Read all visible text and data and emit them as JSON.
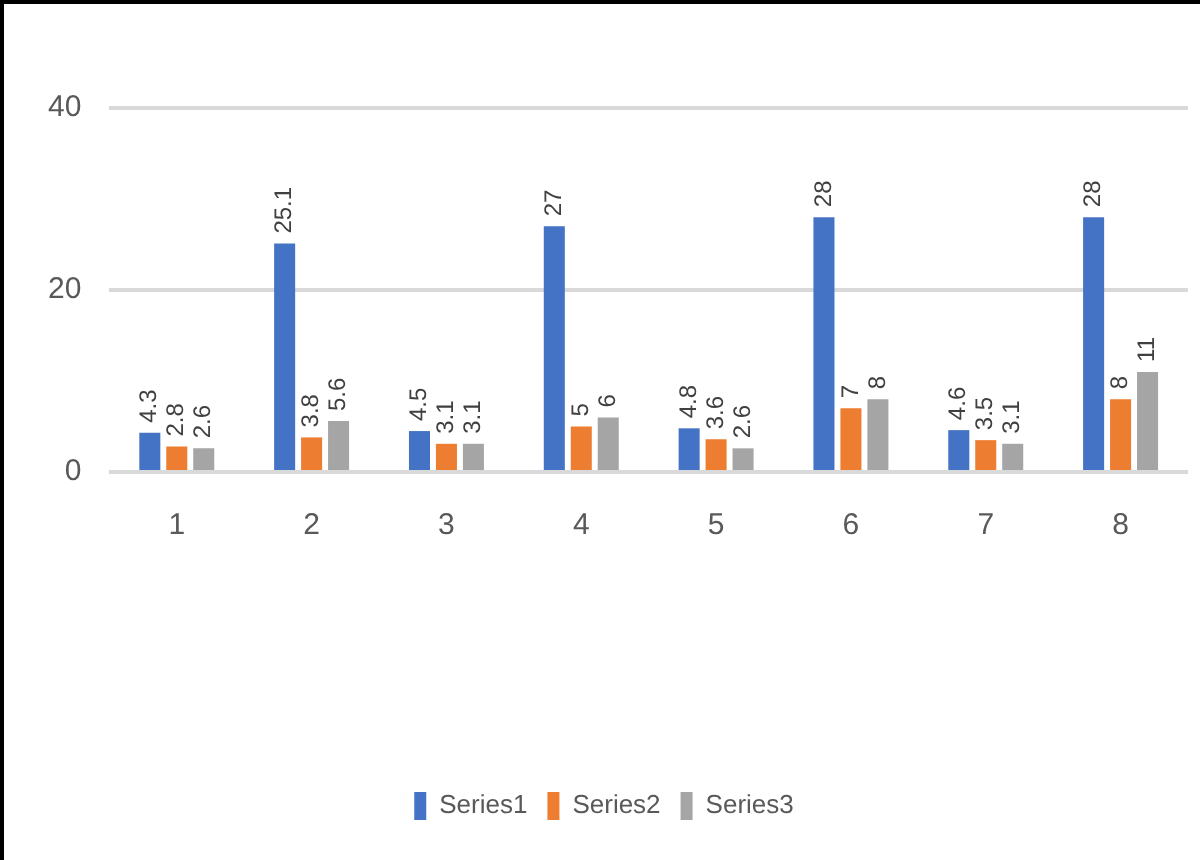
{
  "chart_data": {
    "type": "bar",
    "categories": [
      "1",
      "2",
      "3",
      "4",
      "5",
      "6",
      "7",
      "8"
    ],
    "series": [
      {
        "name": "Series1",
        "color": "#4472c4",
        "values": [
          4.3,
          25.1,
          4.5,
          27,
          4.8,
          28,
          4.6,
          28
        ]
      },
      {
        "name": "Series2",
        "color": "#ed7d31",
        "values": [
          2.8,
          3.8,
          3.1,
          5,
          3.6,
          7,
          3.5,
          8
        ]
      },
      {
        "name": "Series3",
        "color": "#a5a5a5",
        "values": [
          2.6,
          5.6,
          3.1,
          6,
          2.6,
          8,
          3.1,
          11
        ]
      }
    ],
    "ylim": [
      0,
      40
    ],
    "yticks": [
      0,
      20,
      40
    ],
    "grid": "y",
    "legend": "bottom",
    "data_labels": true
  }
}
